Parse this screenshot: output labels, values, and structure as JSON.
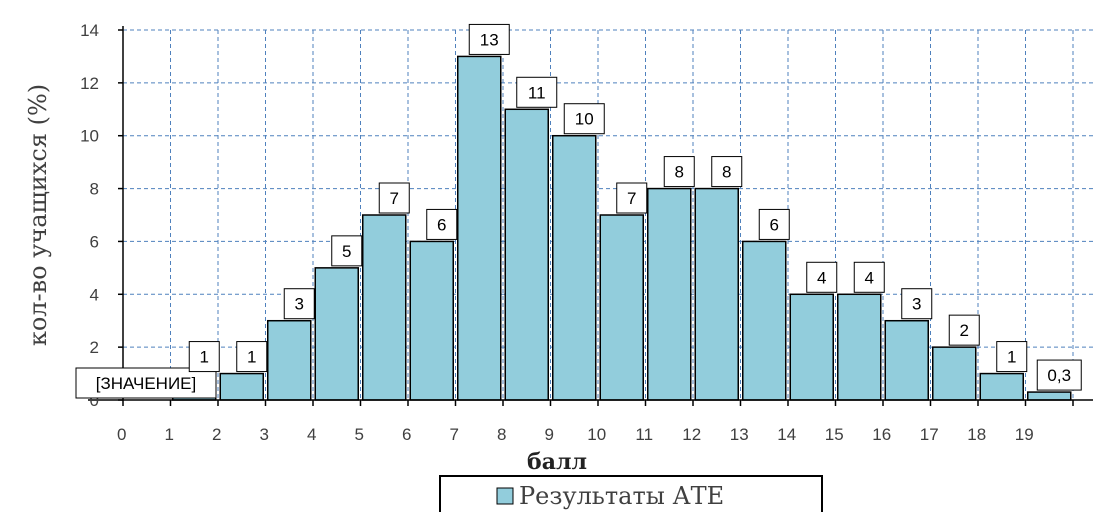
{
  "chart_data": {
    "type": "bar",
    "categories": [
      "0",
      "1",
      "2",
      "3",
      "4",
      "5",
      "6",
      "7",
      "8",
      "9",
      "10",
      "11",
      "12",
      "13",
      "14",
      "15",
      "16",
      "17",
      "18",
      "19"
    ],
    "series": [
      {
        "name": "Результаты АТЕ",
        "values": [
          0,
          1,
          1,
          3,
          5,
          7,
          6,
          13,
          11,
          10,
          7,
          8,
          8,
          6,
          4,
          4,
          3,
          2,
          1,
          0.3
        ],
        "labels": [
          "[ЗНАЧЕНИЕ]",
          "1",
          "1",
          "3",
          "5",
          "7",
          "6",
          "13",
          "11",
          "10",
          "7",
          "8",
          "8",
          "6",
          "4",
          "4",
          "3",
          "2",
          "1",
          "0,3"
        ]
      }
    ],
    "title": "",
    "xlabel": "балл",
    "ylabel": "кол-во учащихся (%)",
    "ylim": [
      0,
      14
    ],
    "yticks": [
      "0",
      "2",
      "4",
      "6",
      "8",
      "10",
      "12",
      "14"
    ],
    "grid": true,
    "legend": "bottom",
    "colors": {
      "bar": "#92cddc",
      "bar_stroke": "#000000",
      "grid": "#4f81bd",
      "axis": "#000000"
    }
  }
}
